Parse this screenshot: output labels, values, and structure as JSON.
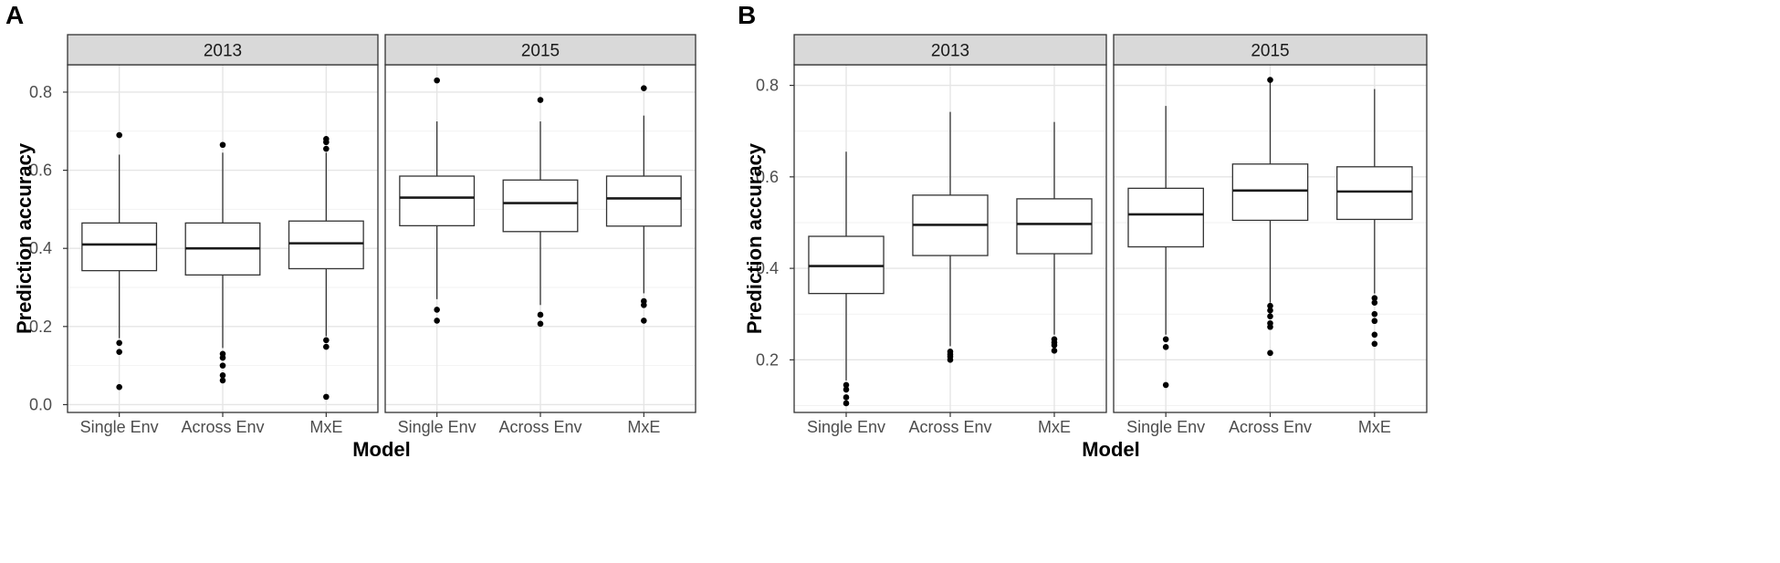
{
  "chart_data": [
    {
      "panel_label": "A",
      "type": "boxplot",
      "xlabel": "Model",
      "ylabel": "Prediction accuracy",
      "ylim": [
        -0.02,
        0.87
      ],
      "yticks": [
        "0.0",
        "0.2",
        "0.4",
        "0.6",
        "0.8"
      ],
      "categories": [
        "Single Env",
        "Across Env",
        "MxE"
      ],
      "facets": [
        {
          "label": "2013",
          "boxes": [
            {
              "category": "Single Env",
              "whisker_low": 0.17,
              "q1": 0.343,
              "median": 0.41,
              "q3": 0.465,
              "whisker_high": 0.64,
              "outliers": [
                0.69,
                0.158,
                0.135,
                0.045
              ]
            },
            {
              "category": "Across Env",
              "whisker_low": 0.145,
              "q1": 0.332,
              "median": 0.4,
              "q3": 0.465,
              "whisker_high": 0.645,
              "outliers": [
                0.665,
                0.13,
                0.12,
                0.1,
                0.075,
                0.062
              ]
            },
            {
              "category": "MxE",
              "whisker_low": 0.175,
              "q1": 0.348,
              "median": 0.413,
              "q3": 0.47,
              "whisker_high": 0.645,
              "outliers": [
                0.68,
                0.672,
                0.655,
                0.165,
                0.148,
                0.02
              ]
            }
          ]
        },
        {
          "label": "2015",
          "boxes": [
            {
              "category": "Single Env",
              "whisker_low": 0.27,
              "q1": 0.458,
              "median": 0.53,
              "q3": 0.585,
              "whisker_high": 0.725,
              "outliers": [
                0.83,
                0.243,
                0.215
              ]
            },
            {
              "category": "Across Env",
              "whisker_low": 0.255,
              "q1": 0.443,
              "median": 0.516,
              "q3": 0.575,
              "whisker_high": 0.725,
              "outliers": [
                0.78,
                0.23,
                0.207
              ]
            },
            {
              "category": "MxE",
              "whisker_low": 0.285,
              "q1": 0.457,
              "median": 0.528,
              "q3": 0.585,
              "whisker_high": 0.74,
              "outliers": [
                0.81,
                0.265,
                0.255,
                0.215
              ]
            }
          ]
        }
      ]
    },
    {
      "panel_label": "B",
      "type": "boxplot",
      "xlabel": "Model",
      "ylabel": "Prediction accuracy",
      "ylim": [
        0.085,
        0.845
      ],
      "yticks": [
        "0.2",
        "0.4",
        "0.6",
        "0.8"
      ],
      "categories": [
        "Single Env",
        "Across Env",
        "MxE"
      ],
      "facets": [
        {
          "label": "2013",
          "boxes": [
            {
              "category": "Single Env",
              "whisker_low": 0.155,
              "q1": 0.345,
              "median": 0.405,
              "q3": 0.47,
              "whisker_high": 0.655,
              "outliers": [
                0.145,
                0.135,
                0.118,
                0.105
              ]
            },
            {
              "category": "Across Env",
              "whisker_low": 0.23,
              "q1": 0.428,
              "median": 0.495,
              "q3": 0.56,
              "whisker_high": 0.742,
              "outliers": [
                0.218,
                0.212,
                0.207,
                0.2
              ]
            },
            {
              "category": "MxE",
              "whisker_low": 0.255,
              "q1": 0.432,
              "median": 0.497,
              "q3": 0.552,
              "whisker_high": 0.72,
              "outliers": [
                0.245,
                0.238,
                0.232,
                0.22
              ]
            }
          ]
        },
        {
          "label": "2015",
          "boxes": [
            {
              "category": "Single Env",
              "whisker_low": 0.255,
              "q1": 0.447,
              "median": 0.518,
              "q3": 0.575,
              "whisker_high": 0.755,
              "outliers": [
                0.245,
                0.228,
                0.145
              ]
            },
            {
              "category": "Across Env",
              "whisker_low": 0.325,
              "q1": 0.505,
              "median": 0.57,
              "q3": 0.628,
              "whisker_high": 0.81,
              "outliers": [
                0.812,
                0.318,
                0.308,
                0.295,
                0.28,
                0.272,
                0.215
              ]
            },
            {
              "category": "MxE",
              "whisker_low": 0.345,
              "q1": 0.507,
              "median": 0.568,
              "q3": 0.622,
              "whisker_high": 0.792,
              "outliers": [
                0.335,
                0.325,
                0.3,
                0.285,
                0.255,
                0.235
              ]
            }
          ]
        }
      ]
    }
  ]
}
